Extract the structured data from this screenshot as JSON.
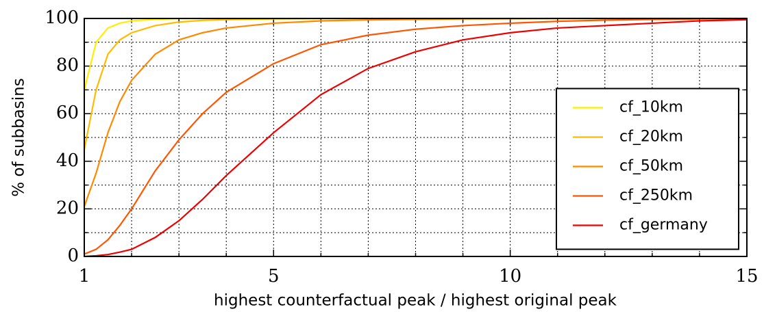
{
  "chart_data": {
    "type": "line",
    "xlabel": "highest counterfactual peak / highest original peak",
    "ylabel": "% of subbasins",
    "x": [
      1,
      1.25,
      1.5,
      1.75,
      2,
      2.5,
      3,
      3.5,
      4,
      5,
      6,
      7,
      8,
      9,
      10,
      11,
      12,
      13,
      14,
      15
    ],
    "series": [
      {
        "name": "cf_10km",
        "color": "#ffee00",
        "values": [
          70,
          90,
          96,
          98,
          99,
          99.6,
          100,
          100,
          100,
          100,
          100,
          100,
          100,
          100,
          100,
          100,
          100,
          100,
          100,
          100
        ]
      },
      {
        "name": "cf_20km",
        "color": "#ffbb00",
        "values": [
          45,
          70,
          85,
          91,
          94,
          97,
          98.5,
          99.2,
          99.5,
          99.8,
          100,
          100,
          100,
          100,
          100,
          100,
          100,
          100,
          100,
          100
        ]
      },
      {
        "name": "cf_50km",
        "color": "#ff8800",
        "values": [
          21,
          35,
          52,
          65,
          74,
          85,
          91,
          94,
          96,
          98,
          99,
          99.4,
          99.6,
          99.8,
          99.9,
          100,
          100,
          100,
          100,
          100
        ]
      },
      {
        "name": "cf_250km",
        "color": "#ff5500",
        "values": [
          1,
          3,
          7,
          13,
          20,
          36,
          49,
          60,
          69,
          81,
          89,
          93,
          95.5,
          97,
          98,
          98.8,
          99.3,
          99.6,
          99.8,
          100
        ]
      },
      {
        "name": "cf_germany",
        "color": "#ee0000",
        "values": [
          0,
          0.3,
          0.8,
          1.8,
          3,
          8,
          15,
          24,
          34,
          52,
          68,
          79,
          86,
          91,
          94,
          96,
          97,
          98,
          99,
          99.5
        ]
      }
    ],
    "xlim": [
      1,
      15
    ],
    "xticks": [
      1,
      5,
      10,
      15
    ],
    "x_minor_ticks": [
      2,
      3,
      4,
      6,
      7,
      8,
      9,
      11,
      12,
      13,
      14
    ],
    "ylim": [
      0,
      100
    ],
    "yticks": [
      0,
      20,
      40,
      60,
      80,
      100
    ],
    "y_minor_ticks": [
      10,
      30,
      50,
      70,
      90
    ],
    "grid": true,
    "legend": "center right"
  }
}
